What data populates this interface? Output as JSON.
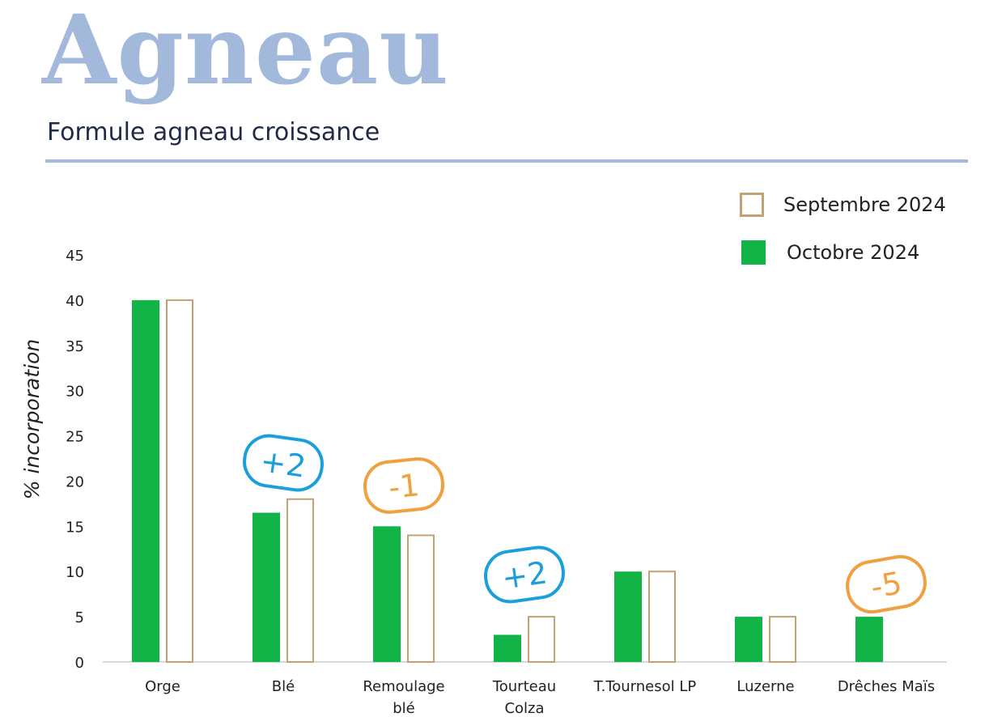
{
  "page": {
    "title": "Agneau",
    "subtitle": "Formule agneau croissance"
  },
  "colors": {
    "title": "#a3b9dc",
    "rule": "#a3b9dc",
    "octobre": "#12b347",
    "septembre_outline": "#c2a272",
    "axis": "#cccccc",
    "text": "#222222",
    "badge_up": "#1a9fdc",
    "badge_down": "#f0a040"
  },
  "chart_data": {
    "type": "bar",
    "ylabel": "% incorporation",
    "ylim": [
      0,
      45
    ],
    "yticks": [
      "0",
      "5",
      "10",
      "15",
      "20",
      "25",
      "30",
      "35",
      "40",
      "45"
    ],
    "categories": [
      [
        "Orge"
      ],
      [
        "Blé"
      ],
      [
        "Remoulage",
        "blé"
      ],
      [
        "Tourteau",
        "Colza"
      ],
      [
        "T.Tournesol LP"
      ],
      [
        "Luzerne"
      ],
      [
        "Drêches Maïs"
      ]
    ],
    "series": [
      {
        "name": "Octobre 2024",
        "values": [
          40,
          16.5,
          15,
          3,
          10,
          5,
          5
        ]
      },
      {
        "name": "Septembre 2024",
        "values": [
          40,
          18,
          14,
          5,
          10,
          5,
          0
        ]
      }
    ],
    "legend": [
      {
        "label": "Septembre 2024",
        "style": "outline"
      },
      {
        "label": "Octobre 2024",
        "style": "filled"
      }
    ],
    "legend_position": "top-right",
    "grid": false,
    "annotations": [
      {
        "category_index": 1,
        "text": "+2",
        "kind": "up"
      },
      {
        "category_index": 2,
        "text": "-1",
        "kind": "down"
      },
      {
        "category_index": 3,
        "text": "+2",
        "kind": "up"
      },
      {
        "category_index": 6,
        "text": "-5",
        "kind": "down"
      }
    ]
  }
}
